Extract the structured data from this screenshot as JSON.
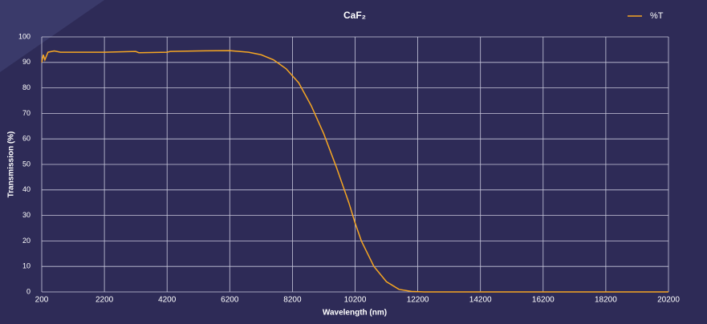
{
  "chart_data": {
    "type": "line",
    "title": "CaF₂",
    "x_label": "Wavelength (nm)",
    "y_label": "Transmission (%)",
    "x": [
      200,
      250,
      300,
      400,
      600,
      800,
      1000,
      2200,
      3200,
      3300,
      4200,
      4300,
      5200,
      6200,
      6800,
      7200,
      7600,
      8000,
      8400,
      8800,
      9200,
      9600,
      10000,
      10200,
      10400,
      10800,
      11200,
      11600,
      12000,
      12400,
      20200
    ],
    "series": [
      {
        "name": "%T",
        "color": "#f5a623",
        "values": [
          90,
          93,
          91,
          94,
          94.5,
          94,
          94,
          94,
          94.3,
          93.8,
          94,
          94.3,
          94.5,
          94.6,
          94,
          93,
          91,
          87.5,
          82,
          73,
          62,
          49,
          35,
          27,
          20,
          10,
          4,
          1,
          0.2,
          0,
          0
        ]
      }
    ],
    "xlim": [
      200,
      20200
    ],
    "xticks": [
      200,
      2200,
      4200,
      6200,
      8200,
      10200,
      12200,
      14200,
      16200,
      18200,
      20200
    ],
    "ylim": [
      0,
      100
    ],
    "yticks": [
      0,
      10,
      20,
      30,
      40,
      50,
      60,
      70,
      80,
      90,
      100
    ],
    "grid": true,
    "legend": "top-right"
  }
}
